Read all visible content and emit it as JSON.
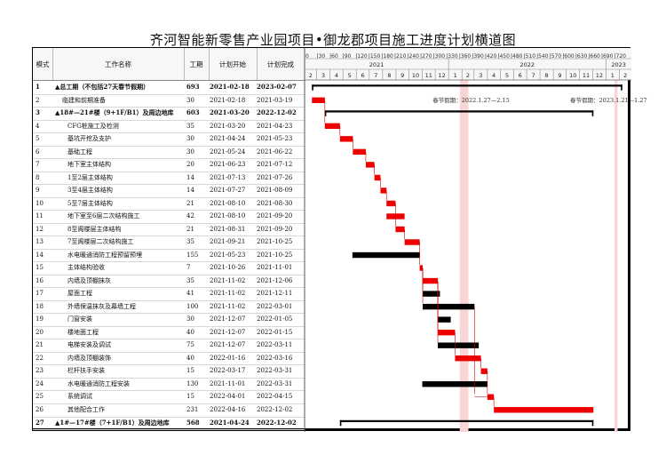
{
  "title": "齐河智能新零售产业园项目•御龙郡项目施工进度计划横道图",
  "headers": {
    "id": "模式",
    "name": "工作名称",
    "duration": "工期",
    "start": "计划开始",
    "end": "计划完成"
  },
  "timeline": {
    "top_numbers": [
      "0",
      "30",
      "60",
      "90",
      "120",
      "150",
      "180",
      "210",
      "240",
      "270",
      "300",
      "330",
      "360",
      "390",
      "420",
      "450",
      "480",
      "510",
      "540",
      "570",
      "600",
      "630",
      "660",
      "690",
      "720"
    ],
    "years": [
      {
        "label": "2021",
        "from": "2021-01-01",
        "to": "2022-01-01"
      },
      {
        "label": "2022",
        "from": "2022-01-01",
        "to": "2023-01-01"
      },
      {
        "label": "2023",
        "from": "2023-01-01",
        "to": "2023-03-01"
      }
    ],
    "months": [
      "2",
      "3",
      "4",
      "5",
      "6",
      "7",
      "8",
      "9",
      "10",
      "11",
      "12",
      "1",
      "2",
      "3",
      "4",
      "5",
      "6",
      "7",
      "8",
      "9",
      "10",
      "11",
      "12",
      "1",
      "2"
    ],
    "axis_start": "2021-02-01",
    "axis_end": "2023-03-01"
  },
  "annotations": {
    "holiday1": "春节假期：2022.1.27—2.15",
    "holiday2": "春节假期：2023.1.21—1.27"
  },
  "holiday_bands": [
    {
      "from": "2022-01-27",
      "to": "2022-02-15"
    },
    {
      "from": "2023-01-21",
      "to": "2023-01-27"
    }
  ],
  "colors": {
    "normal_bar": "#ee0000",
    "critical_bar": "#000000",
    "summary_bar": "#000000",
    "holiday_band": "#f8d6d6",
    "link": "#cc0000"
  },
  "chart_data": {
    "type": "gantt",
    "tasks": [
      {
        "id": "1",
        "name": "▲总工期（不包括27天春节假期）",
        "duration": "693",
        "start": "2021-02-18",
        "end": "2023-02-07",
        "kind": "summary",
        "bold": true
      },
      {
        "id": "2",
        "name": "临建和前期准备",
        "duration": "30",
        "start": "2021-02-18",
        "end": "2021-03-19",
        "kind": "normal",
        "bold": false
      },
      {
        "id": "3",
        "name": "▲18#—21#楼（9+1F/B1）及周边地库",
        "duration": "603",
        "start": "2021-03-20",
        "end": "2022-12-02",
        "kind": "summary",
        "bold": true
      },
      {
        "id": "4",
        "name": "CFG桩施工及检测",
        "duration": "35",
        "start": "2021-03-20",
        "end": "2021-04-23",
        "kind": "normal",
        "bold": false
      },
      {
        "id": "5",
        "name": "基坑开挖及支护",
        "duration": "30",
        "start": "2021-04-24",
        "end": "2021-05-23",
        "kind": "normal",
        "bold": false
      },
      {
        "id": "6",
        "name": "基础工程",
        "duration": "30",
        "start": "2021-05-24",
        "end": "2021-06-22",
        "kind": "normal",
        "bold": false
      },
      {
        "id": "7",
        "name": "地下室主体结构",
        "duration": "20",
        "start": "2021-06-23",
        "end": "2021-07-12",
        "kind": "normal",
        "bold": false
      },
      {
        "id": "8",
        "name": "1至2层主体结构",
        "duration": "14",
        "start": "2021-07-13",
        "end": "2021-07-26",
        "kind": "normal",
        "bold": false
      },
      {
        "id": "9",
        "name": "3至4层主体结构",
        "duration": "14",
        "start": "2021-07-27",
        "end": "2021-08-09",
        "kind": "normal",
        "bold": false
      },
      {
        "id": "10",
        "name": "5至7层主体结构",
        "duration": "21",
        "start": "2021-08-10",
        "end": "2021-08-30",
        "kind": "normal",
        "bold": false
      },
      {
        "id": "11",
        "name": "地下室至6层二次结构施工",
        "duration": "42",
        "start": "2021-08-10",
        "end": "2021-09-20",
        "kind": "normal",
        "bold": false
      },
      {
        "id": "12",
        "name": "8至阁楼层主体结构",
        "duration": "21",
        "start": "2021-08-31",
        "end": "2021-09-20",
        "kind": "normal",
        "bold": false
      },
      {
        "id": "13",
        "name": "7至阁楼层二次结构施工",
        "duration": "35",
        "start": "2021-09-21",
        "end": "2021-10-25",
        "kind": "normal",
        "bold": false
      },
      {
        "id": "14",
        "name": "水电暖通消防工程预留预埋",
        "duration": "155",
        "start": "2021-05-23",
        "end": "2021-10-25",
        "kind": "critical",
        "bold": false
      },
      {
        "id": "15",
        "name": "主体结构验收",
        "duration": "7",
        "start": "2021-10-26",
        "end": "2021-11-01",
        "kind": "normal",
        "bold": false
      },
      {
        "id": "16",
        "name": "内墙及顶棚抹灰",
        "duration": "35",
        "start": "2021-11-02",
        "end": "2021-12-06",
        "kind": "normal",
        "bold": false
      },
      {
        "id": "17",
        "name": "屋面工程",
        "duration": "41",
        "start": "2021-11-02",
        "end": "2021-12-11",
        "kind": "critical",
        "bold": false
      },
      {
        "id": "18",
        "name": "外墙保温抹灰及幕墙工程",
        "duration": "100",
        "start": "2021-11-02",
        "end": "2022-03-01",
        "kind": "critical",
        "bold": false
      },
      {
        "id": "19",
        "name": "门窗安装",
        "duration": "30",
        "start": "2021-12-07",
        "end": "2022-01-05",
        "kind": "critical",
        "bold": false
      },
      {
        "id": "20",
        "name": "楼地面工程",
        "duration": "40",
        "start": "2021-12-07",
        "end": "2022-01-15",
        "kind": "normal",
        "bold": false
      },
      {
        "id": "21",
        "name": "电梯安装及调试",
        "duration": "75",
        "start": "2021-12-07",
        "end": "2022-03-11",
        "kind": "critical",
        "bold": false
      },
      {
        "id": "22",
        "name": "内墙及顶棚装饰",
        "duration": "40",
        "start": "2022-01-16",
        "end": "2022-03-16",
        "kind": "normal",
        "bold": false
      },
      {
        "id": "23",
        "name": "栏杆扶手安装",
        "duration": "15",
        "start": "2022-03-17",
        "end": "2022-03-31",
        "kind": "normal",
        "bold": false
      },
      {
        "id": "24",
        "name": "水电暖通消防工程安装",
        "duration": "130",
        "start": "2021-11-01",
        "end": "2022-03-31",
        "kind": "critical",
        "bold": false
      },
      {
        "id": "25",
        "name": "系统调试",
        "duration": "15",
        "start": "2022-04-01",
        "end": "2022-04-15",
        "kind": "normal",
        "bold": false
      },
      {
        "id": "26",
        "name": "其他配合工作",
        "duration": "231",
        "start": "2022-04-16",
        "end": "2022-12-02",
        "kind": "normal",
        "bold": false
      },
      {
        "id": "27",
        "name": "▲1#—17#楼（7+1F/B1）及周边地库",
        "duration": "568",
        "start": "2021-04-24",
        "end": "2022-12-02",
        "kind": "summary",
        "bold": true
      }
    ]
  }
}
